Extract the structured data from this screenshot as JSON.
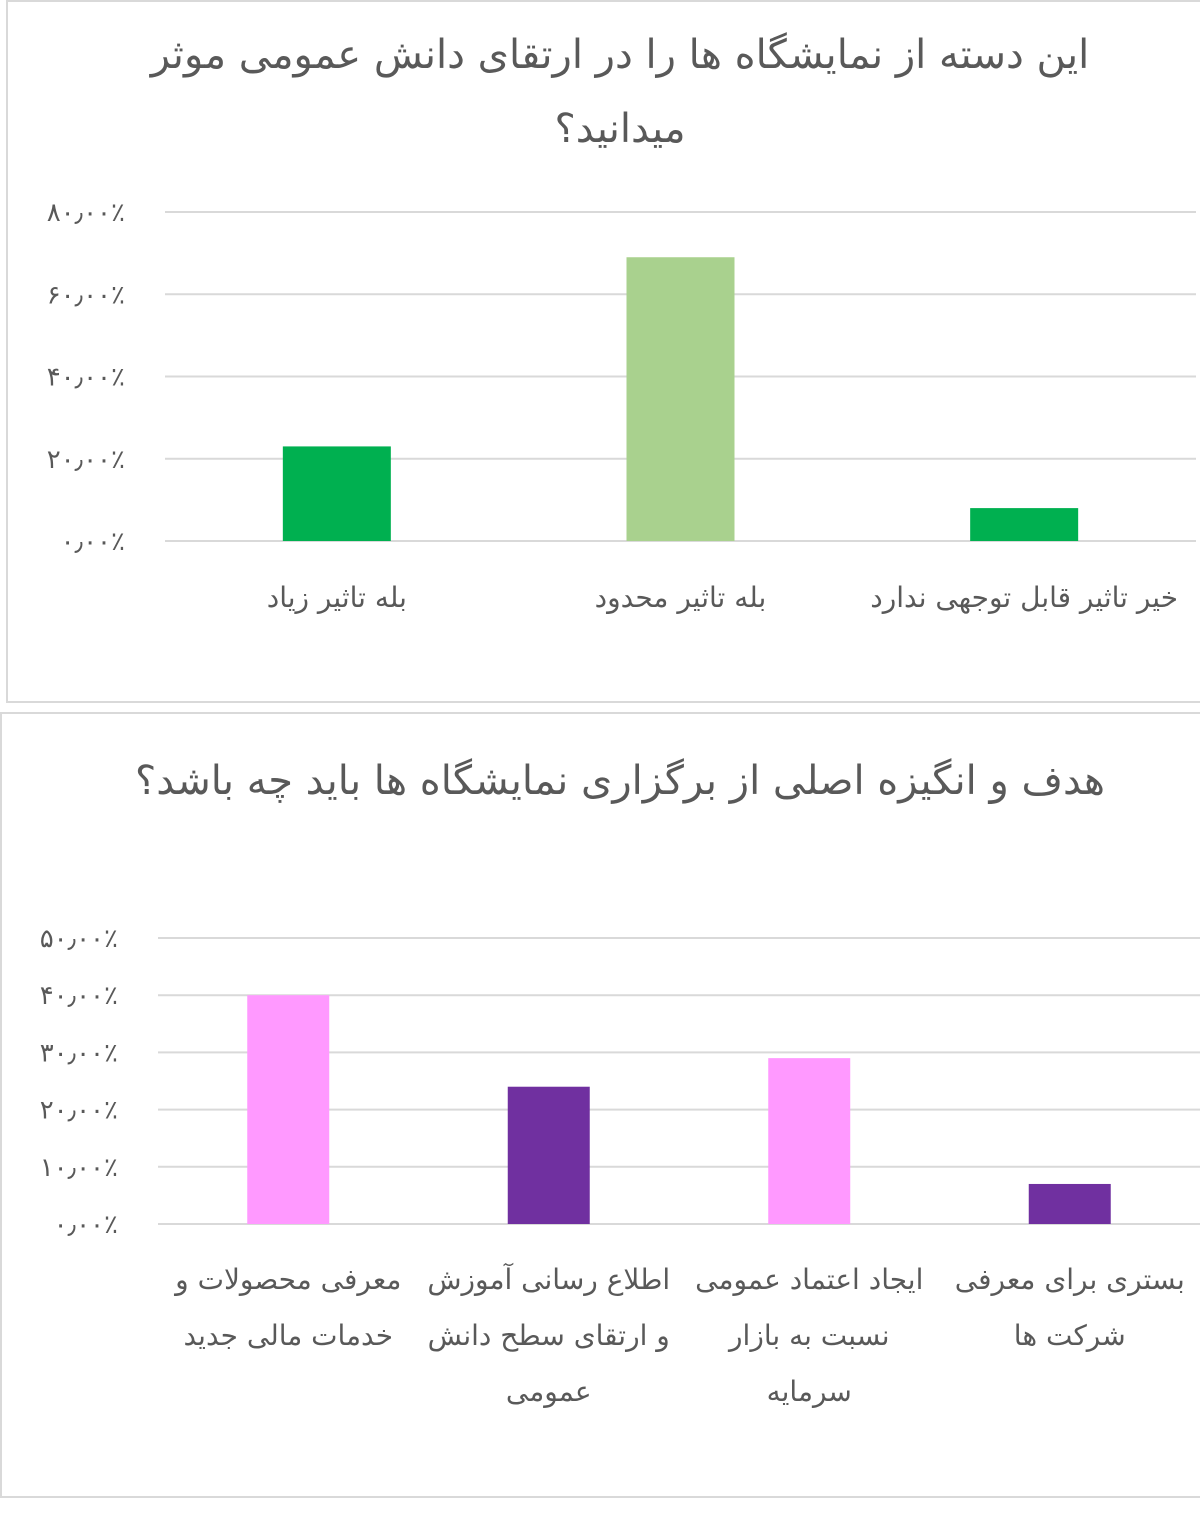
{
  "chart_data": [
    {
      "type": "bar",
      "title": "این دسته از نمایشگاه ها را در ارتقای دانش عمومی موثر میدانید؟",
      "categories": [
        "بله تاثیر زیاد",
        "بله تاثیر محدود",
        "خیر تاثیر قابل توجهی ندارد"
      ],
      "values": [
        23,
        69,
        8
      ],
      "colors": [
        "#00b050",
        "#a9d18e",
        "#00b050"
      ],
      "yticks": [
        "۰٫۰۰٪",
        "۲۰٫۰۰٪",
        "۴۰٫۰۰٪",
        "۶۰٫۰۰٪",
        "۸۰٫۰۰٪"
      ],
      "ylim": [
        0,
        80
      ],
      "grid": true,
      "xlabel": "",
      "ylabel": ""
    },
    {
      "type": "bar",
      "title": "هدف و انگیزه اصلی از برگزاری نمایشگاه ها باید چه باشد؟",
      "categories": [
        "معرفی محصولات و خدمات مالی جدید",
        "اطلاع رسانی آموزش و ارتقای سطح دانش عمومی",
        "ایجاد اعتماد عمومی نسبت به بازار سرمایه",
        "بستری برای معرفی شرکت ها"
      ],
      "values": [
        40,
        24,
        29,
        7
      ],
      "colors": [
        "#ff99ff",
        "#7030a0",
        "#ff99ff",
        "#7030a0"
      ],
      "yticks": [
        "۰٫۰۰٪",
        "۱۰٫۰۰٪",
        "۲۰٫۰۰٪",
        "۳۰٫۰۰٪",
        "۴۰٫۰۰٪",
        "۵۰٫۰۰٪"
      ],
      "ylim": [
        0,
        50
      ],
      "grid": true,
      "xlabel": "",
      "ylabel": ""
    }
  ]
}
